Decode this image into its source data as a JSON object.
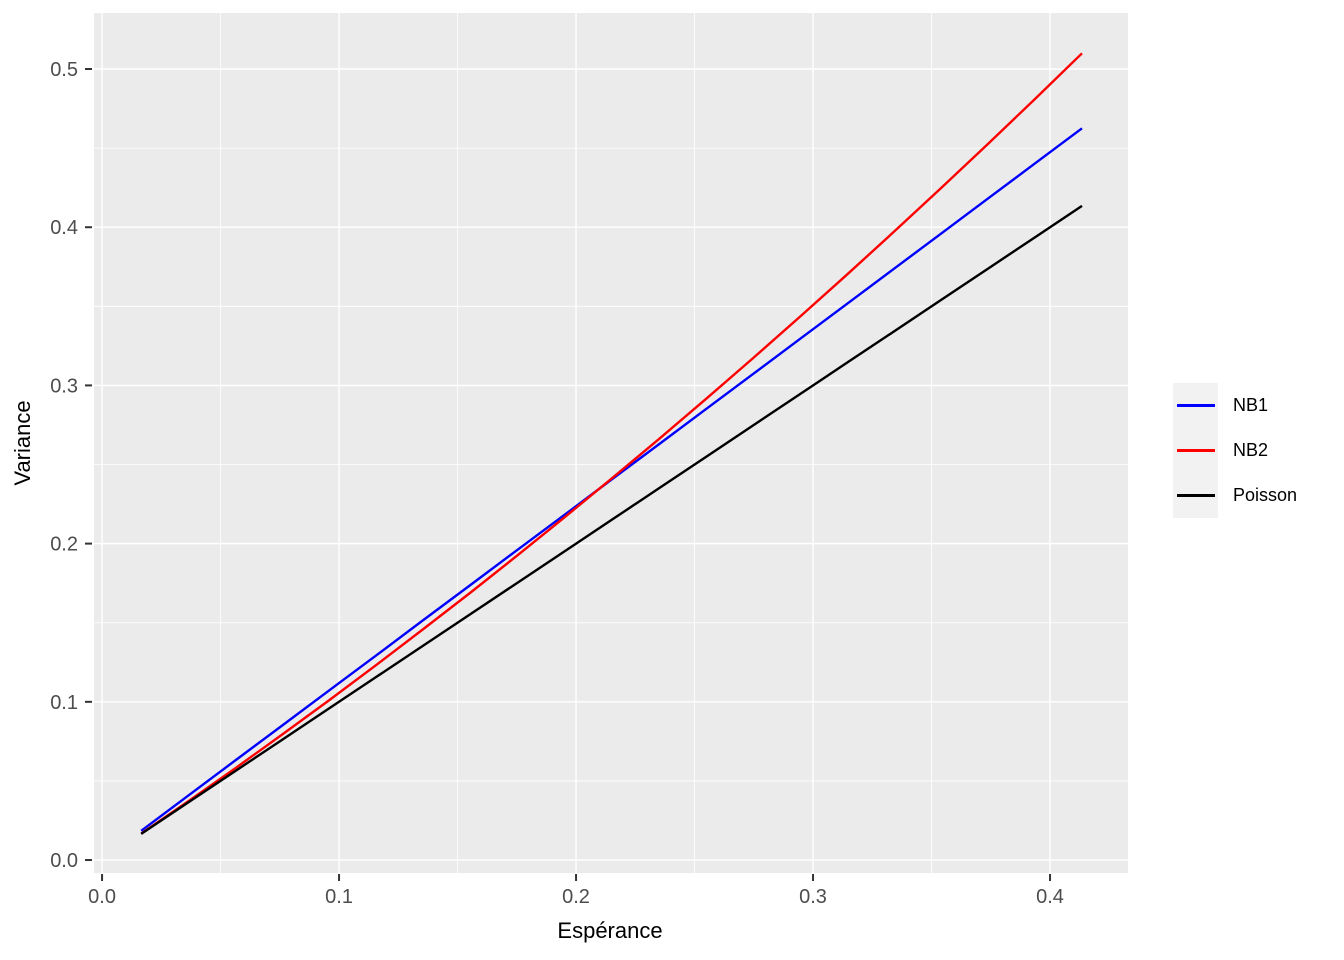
{
  "figure": {
    "background": "#FFFFFF"
  },
  "chart_data": {
    "type": "line",
    "title": "",
    "xlabel": "Espérance",
    "ylabel": "Variance",
    "x": [
      0.0165,
      0.0364,
      0.0562,
      0.0761,
      0.0959,
      0.1158,
      0.1356,
      0.1555,
      0.1753,
      0.1952,
      0.215,
      0.2349,
      0.2547,
      0.2746,
      0.2944,
      0.3143,
      0.3341,
      0.354,
      0.3738,
      0.3937,
      0.4135
    ],
    "series": [
      {
        "name": "NB1",
        "color": "#0000FF",
        "values": [
          0.0185,
          0.0407,
          0.0629,
          0.0851,
          0.1073,
          0.1295,
          0.1517,
          0.1739,
          0.1961,
          0.2183,
          0.2405,
          0.2627,
          0.2849,
          0.3071,
          0.3293,
          0.3515,
          0.3737,
          0.3959,
          0.4181,
          0.4404,
          0.4625
        ]
      },
      {
        "name": "NB2",
        "color": "#FF0000",
        "values": [
          0.0167,
          0.0372,
          0.058,
          0.0794,
          0.1011,
          0.1234,
          0.146,
          0.1691,
          0.1926,
          0.2167,
          0.2411,
          0.266,
          0.2913,
          0.3171,
          0.3433,
          0.37,
          0.3971,
          0.4247,
          0.4526,
          0.4811,
          0.5099
        ]
      },
      {
        "name": "Poisson",
        "color": "#000000",
        "values": [
          0.0165,
          0.0364,
          0.0562,
          0.0761,
          0.0959,
          0.1158,
          0.1356,
          0.1555,
          0.1753,
          0.1952,
          0.215,
          0.2349,
          0.2547,
          0.2746,
          0.2944,
          0.3143,
          0.3341,
          0.354,
          0.3738,
          0.3937,
          0.4135
        ]
      }
    ],
    "xlim": [
      -0.0034,
      0.4329
    ],
    "ylim": [
      -0.0082,
      0.5354
    ],
    "x_ticks": [
      0,
      0.1,
      0.2,
      0.3,
      0.4
    ],
    "x_tick_labels": [
      "0.0",
      "0.1",
      "0.2",
      "0.3",
      "0.4"
    ],
    "y_ticks": [
      0,
      0.1,
      0.2,
      0.3,
      0.4,
      0.5
    ],
    "y_tick_labels": [
      "0.0",
      "0.1",
      "0.2",
      "0.3",
      "0.4",
      "0.5"
    ],
    "x_minor_ticks": [
      0.05,
      0.15,
      0.25,
      0.35
    ],
    "y_minor_ticks": [
      0.05,
      0.15,
      0.25,
      0.35,
      0.45
    ],
    "grid": true,
    "legend_position": "right"
  },
  "legend": {
    "items": [
      {
        "label": "NB1",
        "color": "#0000FF"
      },
      {
        "label": "NB2",
        "color": "#FF0000"
      },
      {
        "label": "Poisson",
        "color": "#000000"
      }
    ]
  },
  "colors": {
    "panel_bg": "#EBEBEB",
    "grid": "#FFFFFF",
    "tick": "#333333",
    "tick_label": "#4D4D4D",
    "axis_title": "#000000",
    "legend_key_bg": "#F2F2F2"
  }
}
